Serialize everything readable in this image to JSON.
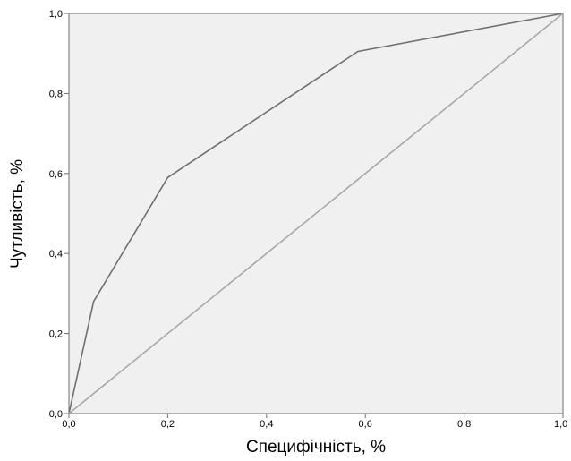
{
  "chart_data": {
    "type": "line",
    "title": "",
    "xlabel": "Специфічність, %",
    "ylabel": "Чутливість, %",
    "xlim": [
      0,
      1
    ],
    "ylim": [
      0,
      1
    ],
    "x_ticks": [
      0,
      0.2,
      0.4,
      0.6,
      0.8,
      1.0
    ],
    "x_tick_labels": [
      "0,0",
      "0,2",
      "0,4",
      "0,6",
      "0,8",
      "1,0"
    ],
    "y_ticks": [
      0,
      0.2,
      0.4,
      0.6,
      0.8,
      1.0
    ],
    "y_tick_labels": [
      "0,0",
      "0,2",
      "0,4",
      "0,6",
      "0,8",
      "1,0"
    ],
    "grid": false,
    "legend": "none",
    "plot_background": "#f0f0f0",
    "series": [
      {
        "x": [
          0,
          0.05,
          0.2,
          0.585,
          1.0
        ],
        "y": [
          0,
          0.28,
          0.59,
          0.905,
          1.0
        ],
        "color": "#707070"
      },
      {
        "x": [
          0,
          1.0
        ],
        "y": [
          0,
          1.0
        ],
        "color": "#a8a8a8"
      }
    ]
  }
}
